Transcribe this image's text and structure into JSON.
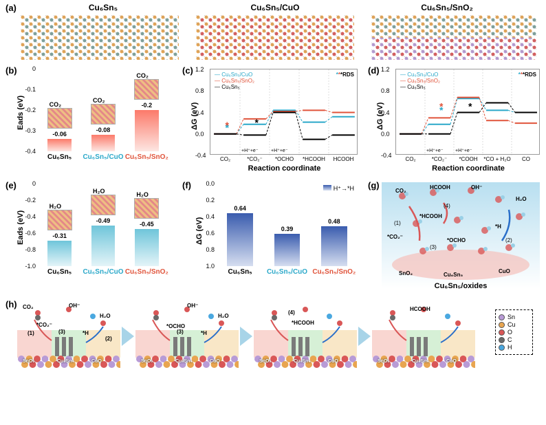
{
  "panels": {
    "a": {
      "label": "(a)",
      "titles": [
        "Cu₆Sn₅",
        "Cu₆Sn₅/CuO",
        "Cu₆Sn₅/SnO₂"
      ]
    },
    "b": {
      "label": "(b)",
      "ylabel": "Eads (eV)",
      "ylim": [
        0,
        -0.4
      ],
      "yticks": [
        "0",
        "-0.1",
        "-0.2",
        "-0.3",
        "-0.4"
      ],
      "mol_label": "CO₂",
      "categories": [
        "Cu₆Sn₅",
        "Cu₆Sn₅/CuO",
        "Cu₆Sn₅/SnO₂"
      ],
      "cat_colors": [
        "#000000",
        "#2aa8c9",
        "#e0533a"
      ],
      "values": [
        -0.06,
        -0.08,
        -0.2
      ],
      "bar_top_color": "#fc7a6a",
      "bar_bot_color": "#fde6e2"
    },
    "c": {
      "label": "(c)",
      "ylabel": "ΔG (eV)",
      "xlabel": "Reaction coordinate",
      "ylim": [
        -0.4,
        1.2
      ],
      "yticks": [
        "-0.4",
        "0.0",
        "0.4",
        "0.8",
        "1.2"
      ],
      "xlabels": [
        "CO₂",
        "*CO₂⁻",
        "*OCHO",
        "*HCOOH",
        "HCOOH"
      ],
      "sublabels": [
        "+H⁺+e⁻",
        "+H⁺+e⁻"
      ],
      "rds_label": "RDS",
      "series": [
        {
          "name": "Cu₆Sn₅/CuO",
          "color": "#2aa8c9",
          "values": [
            0.0,
            0.18,
            0.44,
            0.22,
            0.32
          ],
          "rds": 1
        },
        {
          "name": "Cu₆Sn₅/SnO₂",
          "color": "#e0533a",
          "values": [
            0.0,
            0.28,
            0.42,
            0.44,
            0.4
          ],
          "rds": 1
        },
        {
          "name": "Cu₆Sn₅",
          "color": "#000000",
          "values": [
            0.0,
            -0.02,
            0.4,
            -0.1,
            -0.02
          ],
          "rds": 2
        }
      ]
    },
    "d": {
      "label": "(d)",
      "ylabel": "ΔG (eV)",
      "xlabel": "Reaction coordinate",
      "ylim": [
        -0.4,
        1.2
      ],
      "yticks": [
        "-0.4",
        "0.0",
        "0.4",
        "0.8",
        "1.2"
      ],
      "xlabels": [
        "CO₂",
        "*CO₂⁻",
        "*COOH",
        "*CO + H₂O",
        "CO"
      ],
      "sublabels": [
        "+H⁺+e⁻",
        "+H⁺+e⁻"
      ],
      "rds_label": "RDS",
      "series": [
        {
          "name": "Cu₆Sn₅/CuO",
          "color": "#2aa8c9",
          "values": [
            0.0,
            0.18,
            0.66,
            0.44,
            0.4
          ],
          "rds": 2
        },
        {
          "name": "Cu₆Sn₅/SnO₂",
          "color": "#e0533a",
          "values": [
            0.0,
            0.3,
            0.68,
            0.25,
            0.2
          ],
          "rds": 2
        },
        {
          "name": "Cu₆Sn₅",
          "color": "#000000",
          "values": [
            0.0,
            0.0,
            0.4,
            0.58,
            0.4
          ],
          "rds": 3
        }
      ]
    },
    "e": {
      "label": "(e)",
      "ylabel": "Eads (eV)",
      "ylim": [
        0,
        -1.0
      ],
      "yticks": [
        "0",
        "-0.2",
        "-0.4",
        "-0.6",
        "-0.8",
        "-1.0"
      ],
      "mol_label": "H₂O",
      "categories": [
        "Cu₆Sn₅",
        "Cu₆Sn₅/CuO",
        "Cu₆Sn₅/SnO₂"
      ],
      "cat_colors": [
        "#000000",
        "#2aa8c9",
        "#e0533a"
      ],
      "values": [
        -0.31,
        -0.49,
        -0.45
      ],
      "bar_top_color": "#6fc5da",
      "bar_bot_color": "#e4f4f8"
    },
    "f": {
      "label": "(f)",
      "ylabel": "ΔG (eV)",
      "ylim": [
        0,
        1.0
      ],
      "yticks": [
        "0.0",
        "0.2",
        "0.4",
        "0.6",
        "0.8",
        "1.0"
      ],
      "legend": "H⁺→*H",
      "categories": [
        "Cu₆Sn₅",
        "Cu₆Sn₅/CuO",
        "Cu₆Sn₅/SnO₂"
      ],
      "cat_colors": [
        "#000000",
        "#2aa8c9",
        "#e0533a"
      ],
      "values": [
        0.64,
        0.39,
        0.48
      ],
      "bar_top_color": "#3a5cae",
      "bar_bot_color": "#d6def0"
    },
    "g": {
      "label": "(g)",
      "title": "Cu₆Sn₅/oxides",
      "species": [
        "CO₂",
        "HCOOH",
        "OH⁻",
        "H₂O",
        "*HCOOH",
        "*CO₂⁻",
        "*OCHO",
        "*H",
        "SnO₂",
        "Cu₆Sn₅",
        "CuO"
      ],
      "steps": [
        "(1)",
        "(2)",
        "(3)",
        "(4)"
      ],
      "bg_top": "#b8dff0",
      "bg_bot": "#ffffff"
    },
    "h": {
      "label": "(h)",
      "substrates": [
        "SnO₂",
        "Cu₆Sn₅",
        "CuO"
      ],
      "substrate_colors": [
        "#f9d6d1",
        "#d6f0d6",
        "#f9e7c7"
      ],
      "atom_row_colors": [
        "#b89bd6",
        "#e8a550",
        "#d95757"
      ],
      "species_by_panel": [
        [
          "CO₂",
          "*CO₂⁻",
          "OH⁻",
          "H₂O",
          "*H",
          "(1)",
          "(2)",
          "(3)"
        ],
        [
          "*OCHO",
          "OH⁻",
          "H₂O",
          "*H",
          "(3)"
        ],
        [
          "*HCOOH",
          "(4)"
        ],
        [
          "HCOOH"
        ]
      ]
    }
  },
  "legend_atoms": [
    {
      "name": "Sn",
      "color": "#b89bd6"
    },
    {
      "name": "Cu",
      "color": "#e8a550"
    },
    {
      "name": "O",
      "color": "#d95757"
    },
    {
      "name": "C",
      "color": "#6a6a6a"
    },
    {
      "name": "H",
      "color": "#4aa8e0"
    }
  ],
  "style": {
    "grid_color": "#dddddd",
    "axis_color": "#444444",
    "rds_cyan": "#2aa8c9",
    "rds_red": "#e0533a",
    "rds_black": "#000000"
  }
}
